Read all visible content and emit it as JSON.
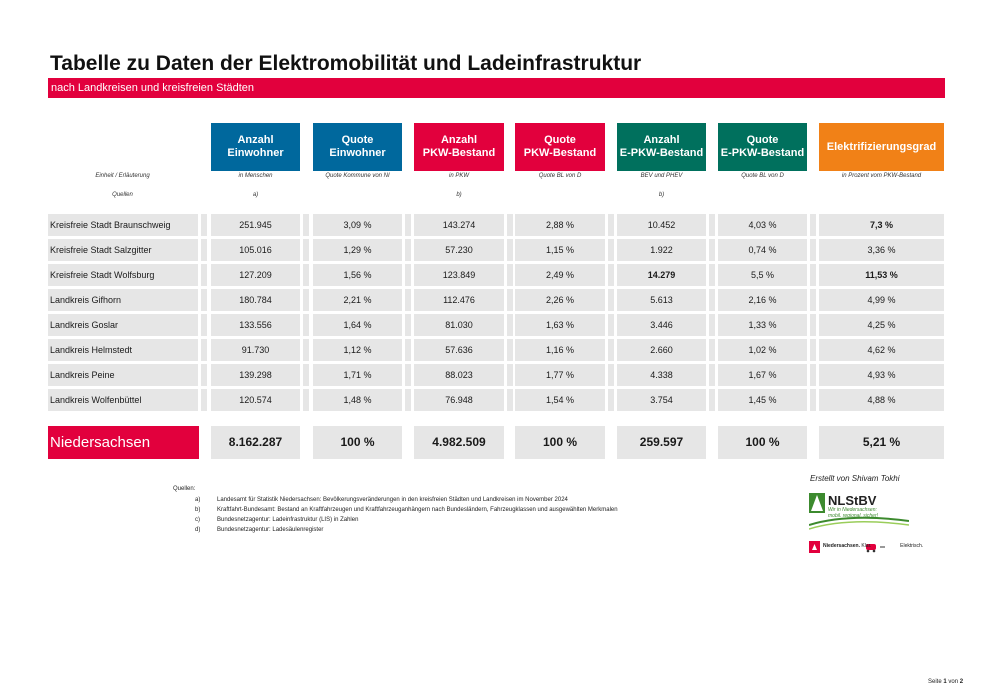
{
  "title": "Tabelle zu Daten der Elektromobilität und Ladeinfrastruktur",
  "subtitle": "nach Landkreisen und kreisfreien Städten",
  "columns": [
    {
      "label": "Anzahl\nEinwohner",
      "unit": "in Menschen",
      "source": "a)",
      "color": "#00689d"
    },
    {
      "label": "Quote Einwohner",
      "unit": "Quote Kommune von NI",
      "source": "",
      "color": "#00689d"
    },
    {
      "label": "Anzahl\nPKW-Bestand",
      "unit": "in PKW",
      "source": "b)",
      "color": "#e2003d"
    },
    {
      "label": "Quote\nPKW-Bestand",
      "unit": "Quote BL von D",
      "source": "",
      "color": "#e2003d"
    },
    {
      "label": "Anzahl\nE-PKW-Bestand",
      "unit": "BEV und PHEV",
      "source": "b)",
      "color": "#00705d"
    },
    {
      "label": "Quote\nE-PKW-Bestand",
      "unit": "Quote BL von D",
      "source": "",
      "color": "#00705d"
    },
    {
      "label": "Elektrifizierungsgrad",
      "unit": "in Prozent vom PKW-Bestand",
      "source": "",
      "color": "#f18117"
    }
  ],
  "meta_labels": {
    "unit": "Einheit / Erläuterung",
    "source": "Quellen"
  },
  "rows": [
    {
      "name": "Kreisfreie Stadt Braunschweig",
      "values": [
        "251.945",
        "3,09 %",
        "143.274",
        "2,88 %",
        "10.452",
        "4,03 %",
        "7,3 %"
      ],
      "bold": [
        false,
        false,
        false,
        false,
        false,
        false,
        true
      ]
    },
    {
      "name": "Kreisfreie Stadt Salzgitter",
      "values": [
        "105.016",
        "1,29 %",
        "57.230",
        "1,15 %",
        "1.922",
        "0,74 %",
        "3,36 %"
      ],
      "bold": [
        false,
        false,
        false,
        false,
        false,
        false,
        false
      ]
    },
    {
      "name": "Kreisfreie Stadt Wolfsburg",
      "values": [
        "127.209",
        "1,56 %",
        "123.849",
        "2,49 %",
        "14.279",
        "5,5 %",
        "11,53 %"
      ],
      "bold": [
        false,
        false,
        false,
        false,
        true,
        false,
        true
      ]
    },
    {
      "name": "Landkreis Gifhorn",
      "values": [
        "180.784",
        "2,21 %",
        "112.476",
        "2,26 %",
        "5.613",
        "2,16 %",
        "4,99 %"
      ],
      "bold": [
        false,
        false,
        false,
        false,
        false,
        false,
        false
      ]
    },
    {
      "name": "Landkreis Goslar",
      "values": [
        "133.556",
        "1,64 %",
        "81.030",
        "1,63 %",
        "3.446",
        "1,33 %",
        "4,25 %"
      ],
      "bold": [
        false,
        false,
        false,
        false,
        false,
        false,
        false
      ]
    },
    {
      "name": "Landkreis Helmstedt",
      "values": [
        "91.730",
        "1,12 %",
        "57.636",
        "1,16 %",
        "2.660",
        "1,02 %",
        "4,62 %"
      ],
      "bold": [
        false,
        false,
        false,
        false,
        false,
        false,
        false
      ]
    },
    {
      "name": "Landkreis Peine",
      "values": [
        "139.298",
        "1,71 %",
        "88.023",
        "1,77 %",
        "4.338",
        "1,67 %",
        "4,93 %"
      ],
      "bold": [
        false,
        false,
        false,
        false,
        false,
        false,
        false
      ]
    },
    {
      "name": "Landkreis Wolfenbüttel",
      "values": [
        "120.574",
        "1,48 %",
        "76.948",
        "1,54 %",
        "3.754",
        "1,45 %",
        "4,88 %"
      ],
      "bold": [
        false,
        false,
        false,
        false,
        false,
        false,
        false
      ]
    }
  ],
  "total": {
    "name": "Niedersachsen",
    "values": [
      "8.162.287",
      "100 %",
      "4.982.509",
      "100 %",
      "259.597",
      "100 %",
      "5,21 %"
    ]
  },
  "sources": {
    "heading": "Quellen:",
    "items": [
      {
        "key": "a)",
        "text": "Landesamt für Statistik Niedersachsen: Bevölkerungsveränderungen in den kreisfreien Städten und Landkreisen im November 2024"
      },
      {
        "key": "b)",
        "text": "Kraftfahrt-Bundesamt: Bestand an Kraftfahrzeugen und Kraftfahrzeuganhängern nach Bundesländern, Fahrzeugklassen und ausgewählten Merkmalen"
      },
      {
        "key": "c)",
        "text": "Bundesnetzagentur: Ladeinfrastruktur (LIS) in Zahlen"
      },
      {
        "key": "d)",
        "text": "Bundesnetzagentur: Ladesäulenregister"
      }
    ]
  },
  "credit": "Erstellt von Shivam Tokhi",
  "logo": {
    "name": "NLStBV",
    "tagline_1": "Wir in Niedersachsen:",
    "tagline_2": "mobil. regional. sicher!"
  },
  "nds_logo": {
    "brand": "Niedersachsen.",
    "word_1": "Klar.",
    "word_2": "Elektrisch."
  },
  "pager": {
    "prefix": "Seite",
    "current": "1",
    "middle": "von",
    "total": "2"
  }
}
